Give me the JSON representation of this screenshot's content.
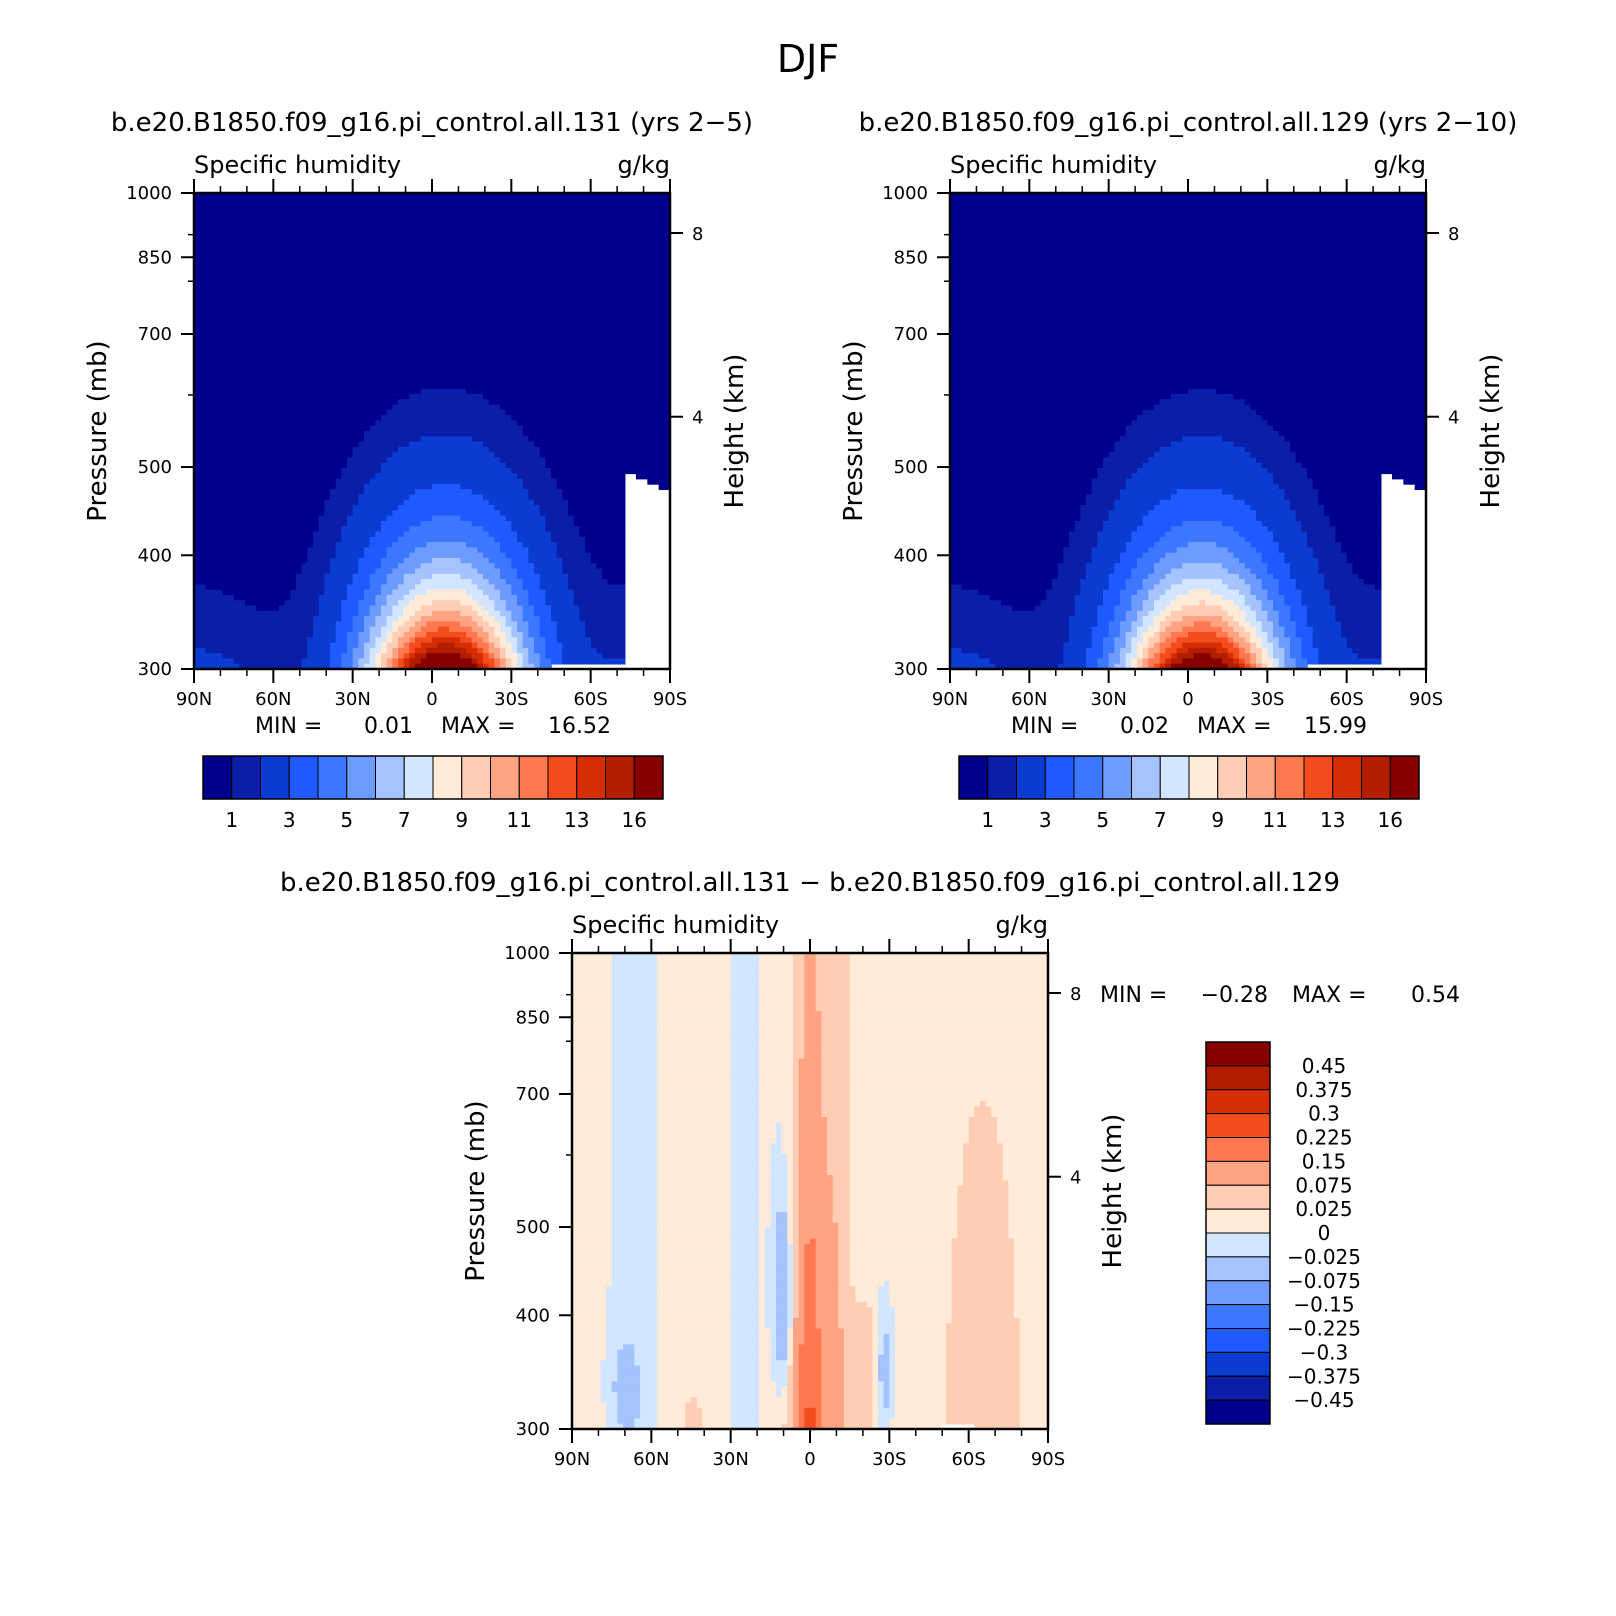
{
  "figure_title": "DJF",
  "palette": [
    "#00008c",
    "#0a1eaa",
    "#0a3cd2",
    "#1e5aff",
    "#3c78ff",
    "#6e9bff",
    "#a5c3ff",
    "#d2e6ff",
    "#ffebd7",
    "#ffcdb4",
    "#ffa382",
    "#ff7850",
    "#f54c1e",
    "#d72d05",
    "#b41e00",
    "#870000"
  ],
  "chart_data": [
    {
      "id": "panel-131",
      "type": "contour",
      "case_title": "b.e20.B1850.f09_g16.pi_control.all.131 (yrs 2−5)",
      "variable": "Specific humidity",
      "units": "g/kg",
      "ylabel": "Pressure (mb)",
      "ylabel_right": "Height (km)",
      "ylim": [
        1000,
        300
      ],
      "y_ticks": [
        "300",
        "400",
        "500",
        "700",
        "850",
        "1000"
      ],
      "right_ticks": [
        "8",
        "4"
      ],
      "x_ticks": [
        "90N",
        "60N",
        "30N",
        "0",
        "30S",
        "60S",
        "90S"
      ],
      "min_label": "MIN =",
      "min_value": "0.01",
      "max_label": "MAX =",
      "max_value": "16.52",
      "levels": [
        0.5,
        1,
        2,
        3,
        4,
        5,
        6,
        7,
        8,
        9,
        10,
        11,
        12,
        13,
        14,
        16
      ],
      "colorbar_labels": [
        "1",
        "3",
        "5",
        "7",
        "9",
        "11",
        "13",
        "16"
      ],
      "peak_lat": -5,
      "peak_value": 16.52
    },
    {
      "id": "panel-129",
      "type": "contour",
      "case_title": "b.e20.B1850.f09_g16.pi_control.all.129 (yrs 2−10)",
      "variable": "Specific humidity",
      "units": "g/kg",
      "ylabel": "Pressure (mb)",
      "ylabel_right": "Height (km)",
      "ylim": [
        1000,
        300
      ],
      "y_ticks": [
        "300",
        "400",
        "500",
        "700",
        "850",
        "1000"
      ],
      "right_ticks": [
        "8",
        "4"
      ],
      "x_ticks": [
        "90N",
        "60N",
        "30N",
        "0",
        "30S",
        "60S",
        "90S"
      ],
      "min_label": "MIN =",
      "min_value": "0.02",
      "max_label": "MAX =",
      "max_value": "15.99",
      "levels": [
        0.5,
        1,
        2,
        3,
        4,
        5,
        6,
        7,
        8,
        9,
        10,
        11,
        12,
        13,
        14,
        16
      ],
      "colorbar_labels": [
        "1",
        "3",
        "5",
        "7",
        "9",
        "11",
        "13",
        "16"
      ],
      "peak_lat": -5,
      "peak_value": 15.99
    },
    {
      "id": "panel-diff",
      "type": "contour",
      "case_title": "b.e20.B1850.f09_g16.pi_control.all.131 − b.e20.B1850.f09_g16.pi_control.all.129",
      "variable": "Specific humidity",
      "units": "g/kg",
      "ylabel": "Pressure (mb)",
      "ylabel_right": "Height (km)",
      "ylim": [
        1000,
        300
      ],
      "y_ticks": [
        "300",
        "400",
        "500",
        "700",
        "850",
        "1000"
      ],
      "right_ticks": [
        "8",
        "4"
      ],
      "x_ticks": [
        "90N",
        "60N",
        "30N",
        "0",
        "30S",
        "60S",
        "90S"
      ],
      "min_label": "MIN =",
      "min_value": "−0.28",
      "max_label": "MAX =",
      "max_value": "0.54",
      "levels": [
        -0.45,
        -0.375,
        -0.3,
        -0.225,
        -0.15,
        -0.075,
        -0.025,
        0,
        0.025,
        0.075,
        0.15,
        0.225,
        0.3,
        0.375,
        0.45
      ],
      "colorbar_labels": [
        "0.45",
        "0.375",
        "0.3",
        "0.225",
        "0.15",
        "0.075",
        "0.025",
        "0",
        "−0.025",
        "−0.075",
        "−0.15",
        "−0.225",
        "−0.3",
        "−0.375",
        "−0.45"
      ]
    }
  ]
}
